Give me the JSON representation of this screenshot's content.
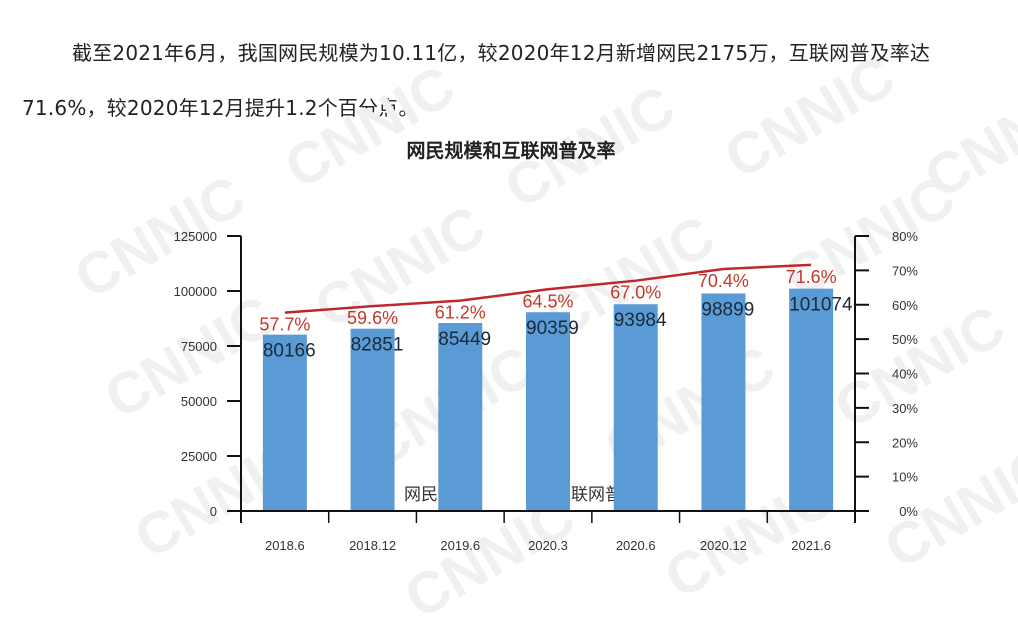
{
  "paragraph": "截至2021年6月，我国网民规模为10.11亿，较2020年12月新增网民2175万，互联网普及率达71.6%，较2020年12月提升1.2个百分点。",
  "watermark": "CNNIC",
  "colors": {
    "bar": "#5b9bd5",
    "line": "#c0272d",
    "pct_label": "#c0392b"
  },
  "chart_data": {
    "type": "bar",
    "title": "网民规模和互联网普及率",
    "categories": [
      "2018.6",
      "2018.12",
      "2019.6",
      "2020.3",
      "2020.6",
      "2020.12",
      "2021.6"
    ],
    "series": [
      {
        "name": "网民规模",
        "type": "bar",
        "axis": "left",
        "values": [
          80166,
          82851,
          85449,
          90359,
          93984,
          98899,
          101074
        ]
      },
      {
        "name": "互联网普及率",
        "type": "line",
        "axis": "right",
        "values": [
          57.7,
          59.6,
          61.2,
          64.5,
          67.0,
          70.4,
          71.6
        ],
        "labels": [
          "57.7%",
          "59.6%",
          "61.2%",
          "64.5%",
          "67.0%",
          "70.4%",
          "71.6%"
        ]
      }
    ],
    "left_axis": {
      "ylim": [
        0,
        125000
      ],
      "ticks": [
        "0",
        "25000",
        "50000",
        "75000",
        "100000",
        "125000"
      ]
    },
    "right_axis": {
      "ylim": [
        0,
        80
      ],
      "ticks": [
        "0%",
        "10%",
        "20%",
        "30%",
        "40%",
        "50%",
        "60%",
        "70%",
        "80%"
      ]
    },
    "legend": {
      "placement": "bottom-inside",
      "entries": [
        "网民规模",
        "互联网普及率"
      ]
    },
    "grid": false
  }
}
